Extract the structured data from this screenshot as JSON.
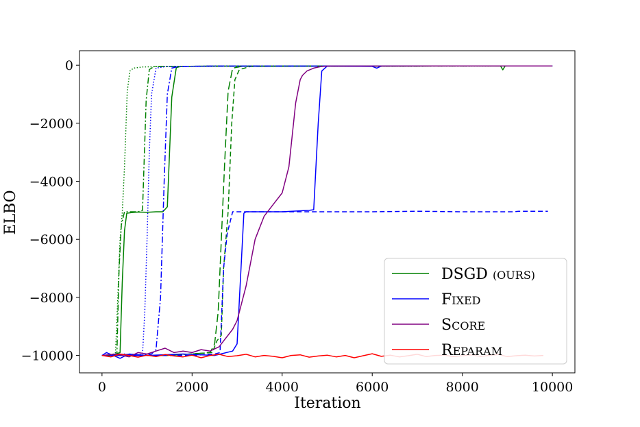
{
  "chart_data": {
    "type": "line",
    "xlabel": "Iteration",
    "ylabel": "ELBO",
    "xlim": [
      -500,
      10500
    ],
    "ylim": [
      -10600,
      500
    ],
    "xticks": [
      0,
      2000,
      4000,
      6000,
      8000,
      10000
    ],
    "xtick_labels": [
      "0",
      "2000",
      "4000",
      "6000",
      "8000",
      "10000"
    ],
    "yticks": [
      0,
      -2000,
      -4000,
      -6000,
      -8000,
      -10000
    ],
    "ytick_labels": [
      "0",
      "−2000",
      "−4000",
      "−6000",
      "−8000",
      "−10000"
    ],
    "grid": false,
    "legend_position": "lower-right",
    "legend": [
      {
        "label": "DSGD",
        "smallcaps": "(ours)",
        "color": "#008000"
      },
      {
        "label": "F",
        "smallcaps": "ixed",
        "color": "#0000ff"
      },
      {
        "label": "S",
        "smallcaps": "core",
        "color": "#800080"
      },
      {
        "label": "R",
        "smallcaps": "eparam",
        "color": "#ff0000"
      }
    ],
    "series": [
      {
        "method": "DSGD",
        "color": "#008000",
        "dash": "solid",
        "x": [
          0,
          200,
          400,
          450,
          500,
          550,
          650,
          800,
          1000,
          1200,
          1350,
          1450,
          1550,
          1650,
          1750,
          2500,
          5000,
          8000,
          8850,
          8900,
          8950,
          9000,
          10000
        ],
        "y": [
          -10000,
          -10000,
          -9900,
          -7500,
          -5700,
          -5100,
          -5080,
          -5060,
          -5070,
          -5050,
          -5050,
          -4880,
          -1100,
          -80,
          -40,
          -30,
          -25,
          -25,
          -30,
          -160,
          -30,
          -25,
          -25
        ]
      },
      {
        "method": "DSGD",
        "color": "#008000",
        "dash": "dashed",
        "x": [
          0,
          1500,
          2450,
          2550,
          2650,
          2700,
          2800,
          2880,
          2950,
          3050,
          3300,
          5000,
          10000
        ],
        "y": [
          -10000,
          -10000,
          -9900,
          -9500,
          -9300,
          -7000,
          -5050,
          -2000,
          -500,
          -150,
          -40,
          -30,
          -25
        ]
      },
      {
        "method": "DSGD",
        "color": "#008000",
        "dash": "dashdot",
        "x": [
          0,
          200,
          330,
          380,
          430,
          500,
          650,
          800,
          900,
          980,
          1050,
          1150,
          1300,
          2000,
          10000
        ],
        "y": [
          -10000,
          -10000,
          -9950,
          -7000,
          -5500,
          -5050,
          -5050,
          -5050,
          -5000,
          -1200,
          -150,
          -50,
          -40,
          -35,
          -25
        ]
      },
      {
        "method": "DSGD",
        "color": "#008000",
        "dash": "dotted",
        "x": [
          0,
          200,
          300,
          350,
          400,
          450,
          500,
          560,
          620,
          700,
          900,
          1500,
          10000
        ],
        "y": [
          -10000,
          -10000,
          -9900,
          -8000,
          -6000,
          -5100,
          -3500,
          -900,
          -200,
          -100,
          -60,
          -40,
          -25
        ]
      },
      {
        "method": "DSGD",
        "color": "#008000",
        "dash": "longdash",
        "x": [
          0,
          1500,
          2400,
          2500,
          2580,
          2650,
          2720,
          2800,
          2900,
          3100,
          5000,
          10000
        ],
        "y": [
          -10000,
          -10000,
          -9900,
          -9600,
          -8500,
          -6000,
          -3500,
          -900,
          -100,
          -40,
          -30,
          -25
        ]
      },
      {
        "method": "Fixed",
        "color": "#0000ff",
        "dash": "solid",
        "x": [
          0,
          100,
          400,
          600,
          1000,
          1800,
          2500,
          2900,
          3000,
          3150,
          3200,
          4000,
          4600,
          4700,
          4800,
          4880,
          5000,
          6000,
          6100,
          6200,
          8000,
          10000
        ],
        "y": [
          -10000,
          -9900,
          -10100,
          -9950,
          -10000,
          -9950,
          -10000,
          -9850,
          -9600,
          -5100,
          -5050,
          -5050,
          -5000,
          -4980,
          -2000,
          -200,
          -30,
          -40,
          -100,
          -30,
          -25,
          -25
        ]
      },
      {
        "method": "Fixed",
        "color": "#0000ff",
        "dash": "dashed",
        "x": [
          0,
          1000,
          2000,
          2500,
          2620,
          2700,
          2780,
          2900,
          3000,
          4000,
          5000,
          6000,
          7000,
          8000,
          9000,
          9150,
          9250,
          9900
        ],
        "y": [
          -10000,
          -10000,
          -10000,
          -9950,
          -9900,
          -7000,
          -5800,
          -5050,
          -5050,
          -5050,
          -5050,
          -5050,
          -5030,
          -5050,
          -5050,
          -5050,
          -5030,
          -5030
        ]
      },
      {
        "method": "Fixed",
        "color": "#0000ff",
        "dash": "dashdot",
        "x": [
          0,
          400,
          800,
          1100,
          1200,
          1300,
          1380,
          1450,
          1550,
          1700,
          2500,
          10000
        ],
        "y": [
          -10000,
          -9950,
          -10000,
          -9950,
          -9800,
          -8000,
          -4000,
          -1000,
          -100,
          -40,
          -30,
          -25
        ]
      },
      {
        "method": "Fixed",
        "color": "#0000ff",
        "dash": "dotted",
        "x": [
          0,
          500,
          800,
          900,
          950,
          1000,
          1050,
          1100,
          1200,
          1400,
          2500,
          10000
        ],
        "y": [
          -10000,
          -9950,
          -10000,
          -9950,
          -8500,
          -6000,
          -3000,
          -1000,
          -100,
          -50,
          -30,
          -25
        ]
      },
      {
        "method": "Score",
        "color": "#800080",
        "dash": "solid",
        "x": [
          0,
          300,
          600,
          800,
          1000,
          1200,
          1400,
          1600,
          1800,
          2000,
          2200,
          2400,
          2600,
          2700,
          2800,
          2900,
          3000,
          3200,
          3400,
          3600,
          3800,
          4000,
          4150,
          4300,
          4400,
          4450,
          4550,
          4700,
          4850,
          5000,
          10000
        ],
        "y": [
          -10000,
          -9950,
          -10050,
          -9900,
          -9950,
          -9850,
          -9750,
          -9900,
          -9850,
          -9900,
          -9800,
          -9850,
          -9700,
          -9500,
          -9300,
          -9100,
          -8800,
          -7600,
          -6000,
          -5200,
          -4800,
          -4400,
          -3500,
          -1300,
          -500,
          -350,
          -200,
          -100,
          -50,
          -30,
          -25
        ]
      },
      {
        "method": "Reparam",
        "color": "#ff0000",
        "dash": "solid",
        "x": [
          0,
          200,
          400,
          600,
          800,
          1000,
          1200,
          1400,
          1600,
          1800,
          2000,
          2200,
          2400,
          2600,
          2800,
          3000,
          3200,
          3400,
          3600,
          3800,
          4000,
          4200,
          4400,
          4600,
          4800,
          5000,
          5200,
          5400,
          5600,
          5800,
          6000,
          6200,
          6400,
          6600,
          6800,
          7000,
          7200,
          7400,
          7600,
          7800,
          8000,
          8200,
          8400,
          8600,
          8800,
          9000,
          9200,
          9400,
          9600,
          9800
        ],
        "y": [
          -10000,
          -10050,
          -9950,
          -10000,
          -10060,
          -9990,
          -10040,
          -9970,
          -10020,
          -10050,
          -9990,
          -10080,
          -10000,
          -9960,
          -10040,
          -10010,
          -9960,
          -10050,
          -10000,
          -10030,
          -10080,
          -10000,
          -9980,
          -10060,
          -10020,
          -9990,
          -10050,
          -10000,
          -10080,
          -10010,
          -9940,
          -10030,
          -9990,
          -10050,
          -10010,
          -9960,
          -10040,
          -10000,
          -9990,
          -10040,
          -10010,
          -9980,
          -10030,
          -10000,
          -9970,
          -10040,
          -10010,
          -9990,
          -10020,
          -10000
        ]
      }
    ]
  }
}
